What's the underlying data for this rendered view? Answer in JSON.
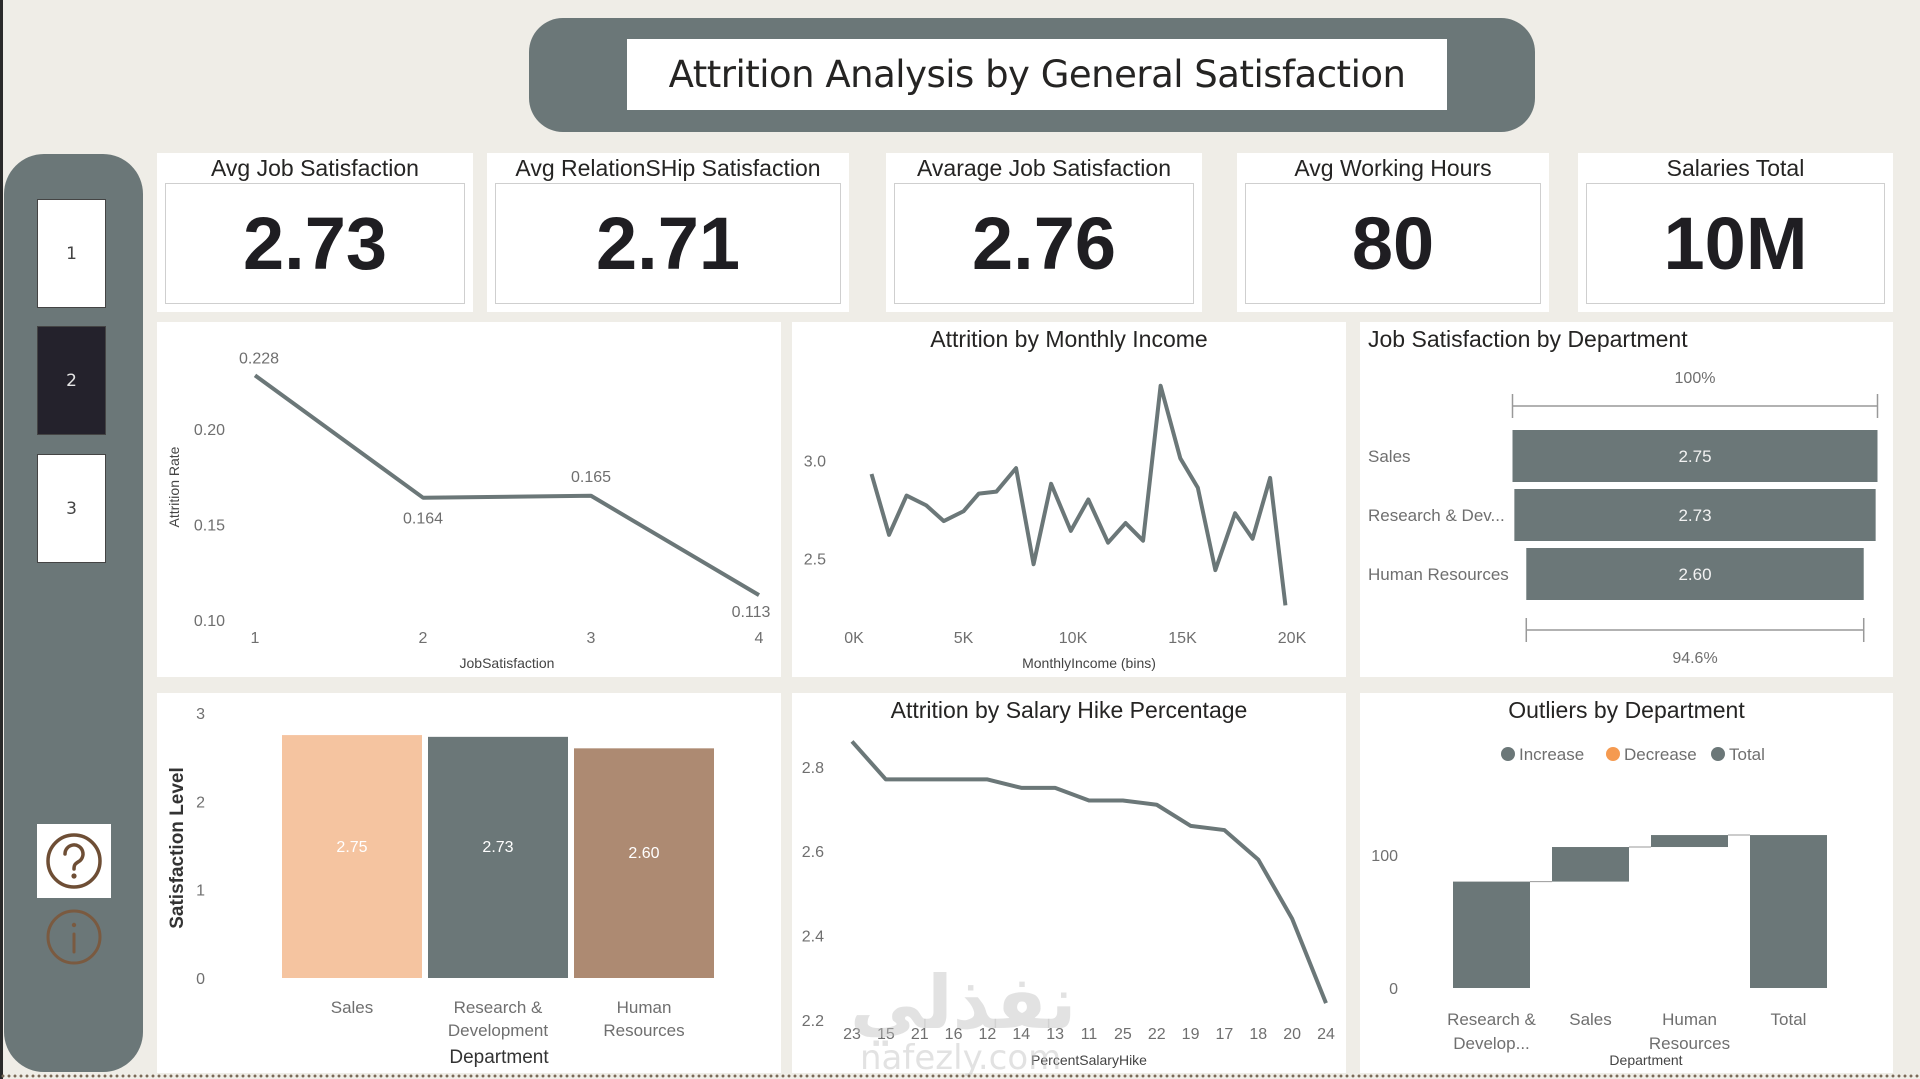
{
  "header": {
    "title": "Attrition Analysis by General Satisfaction"
  },
  "sidebar": {
    "pages": [
      {
        "label": "1",
        "active": false
      },
      {
        "label": "2",
        "active": true
      },
      {
        "label": "3",
        "active": false
      }
    ],
    "help_icon": "question-circle-icon",
    "info_icon": "info-circle-icon"
  },
  "kpis": [
    {
      "title": "Avg Job Satisfaction",
      "value": "2.73"
    },
    {
      "title": "Avg RelationSHip Satisfaction",
      "value": "2.71"
    },
    {
      "title": "Avarage Job Satisfaction",
      "value": "2.76"
    },
    {
      "title": "Avg Working Hours",
      "value": "80"
    },
    {
      "title": "Salaries Total",
      "value": "10M"
    }
  ],
  "colors": {
    "primary": "#6b7778",
    "peach": "#f5c4a0",
    "brown": "#ad8a72",
    "orange": "#f59a50",
    "dark": "#24222c",
    "background": "#efede7"
  },
  "watermark": {
    "arabic": "نفذلي",
    "latin": "nafezly.com"
  },
  "chart_data": [
    {
      "id": "attrition-by-jobsatisfaction",
      "type": "line",
      "title": "",
      "xlabel": "JobSatisfaction",
      "ylabel": "Attrition Rate",
      "x": [
        1,
        2,
        3,
        4
      ],
      "values": [
        0.228,
        0.164,
        0.165,
        0.113
      ],
      "data_labels": [
        "0.228",
        "0.164",
        "0.165",
        "0.113"
      ],
      "yticks": [
        "0.10",
        "0.15",
        "0.20"
      ],
      "xticks": [
        "1",
        "2",
        "3",
        "4"
      ],
      "ylim": [
        0.1,
        0.235
      ]
    },
    {
      "id": "attrition-by-monthly-income",
      "type": "line",
      "title": "Attrition by Monthly Income",
      "xlabel": "MonthlyIncome (bins)",
      "ylabel": "",
      "x": [
        800,
        1600,
        2400,
        3300,
        4100,
        5000,
        5700,
        6500,
        7400,
        8200,
        9000,
        9900,
        10700,
        11600,
        12400,
        13200,
        14000,
        14900,
        15700,
        16500,
        17400,
        18200,
        19000,
        19700
      ],
      "values": [
        2.93,
        2.62,
        2.82,
        2.77,
        2.69,
        2.74,
        2.83,
        2.84,
        2.96,
        2.47,
        2.88,
        2.64,
        2.8,
        2.58,
        2.68,
        2.59,
        3.38,
        3.01,
        2.86,
        2.44,
        2.73,
        2.6,
        2.91,
        2.26
      ],
      "xticks": [
        "0K",
        "5K",
        "10K",
        "15K",
        "20K"
      ],
      "xtick_values": [
        0,
        5000,
        10000,
        15000,
        20000
      ],
      "yticks": [
        "2.5",
        "3.0"
      ],
      "ytick_values": [
        2.5,
        3.0
      ],
      "xlim": [
        0,
        20000
      ],
      "ylim": [
        2.15,
        3.45
      ]
    },
    {
      "id": "job-satisfaction-by-department",
      "type": "bar",
      "title": "Job Satisfaction by Department",
      "categories": [
        "Sales",
        "Research & Dev...",
        "Human Resources"
      ],
      "values": [
        2.75,
        2.73,
        2.6
      ],
      "data_labels": [
        "2.75",
        "2.73",
        "2.60"
      ],
      "top_label": "100%",
      "bottom_label": "94.6%"
    },
    {
      "id": "satisfaction-level-by-department",
      "type": "bar",
      "title": "",
      "xlabel": "Department",
      "ylabel": "Satisfaction Level",
      "categories": [
        "Sales",
        "Research & Development",
        "Human Resources"
      ],
      "category_lines": [
        [
          "Sales"
        ],
        [
          "Research &",
          "Development"
        ],
        [
          "Human",
          "Resources"
        ]
      ],
      "values": [
        2.75,
        2.73,
        2.6
      ],
      "data_labels": [
        "2.75",
        "2.73",
        "2.60"
      ],
      "bar_colors": [
        "#f5c4a0",
        "#6b7778",
        "#ad8a72"
      ],
      "yticks": [
        "0",
        "1",
        "2",
        "3"
      ],
      "ylim": [
        0,
        3
      ]
    },
    {
      "id": "attrition-by-salary-hike",
      "type": "line",
      "title": "Attrition by Salary Hike Percentage",
      "xlabel": "PercentSalaryHike",
      "ylabel": "",
      "categories": [
        "23",
        "15",
        "21",
        "16",
        "12",
        "14",
        "13",
        "11",
        "25",
        "22",
        "19",
        "17",
        "18",
        "20",
        "24"
      ],
      "values": [
        2.86,
        2.77,
        2.77,
        2.77,
        2.77,
        2.75,
        2.75,
        2.72,
        2.72,
        2.71,
        2.66,
        2.65,
        2.58,
        2.44,
        2.24
      ],
      "yticks": [
        "2.2",
        "2.4",
        "2.6",
        "2.8"
      ],
      "ytick_values": [
        2.2,
        2.4,
        2.6,
        2.8
      ],
      "ylim": [
        2.2,
        2.88
      ]
    },
    {
      "id": "outliers-by-department",
      "type": "bar",
      "subtype": "waterfall",
      "title": "Outliers by Department",
      "xlabel": "Department",
      "legend": [
        {
          "label": "Increase",
          "color": "#6b7778"
        },
        {
          "label": "Decrease",
          "color": "#f59a50"
        },
        {
          "label": "Total",
          "color": "#6b7778"
        }
      ],
      "legend_position": "top-center",
      "categories": [
        "Research & Develop...",
        "Sales",
        "Human Resources",
        "Total"
      ],
      "category_lines": [
        [
          "Research &",
          "Develop..."
        ],
        [
          "Sales"
        ],
        [
          "Human",
          "Resources"
        ],
        [
          "Total"
        ]
      ],
      "values": [
        80,
        26,
        9,
        115
      ],
      "is_total": [
        false,
        false,
        false,
        true
      ],
      "yticks": [
        "0",
        "100"
      ],
      "ytick_values": [
        0,
        100
      ],
      "ylim": [
        0,
        140
      ]
    }
  ]
}
